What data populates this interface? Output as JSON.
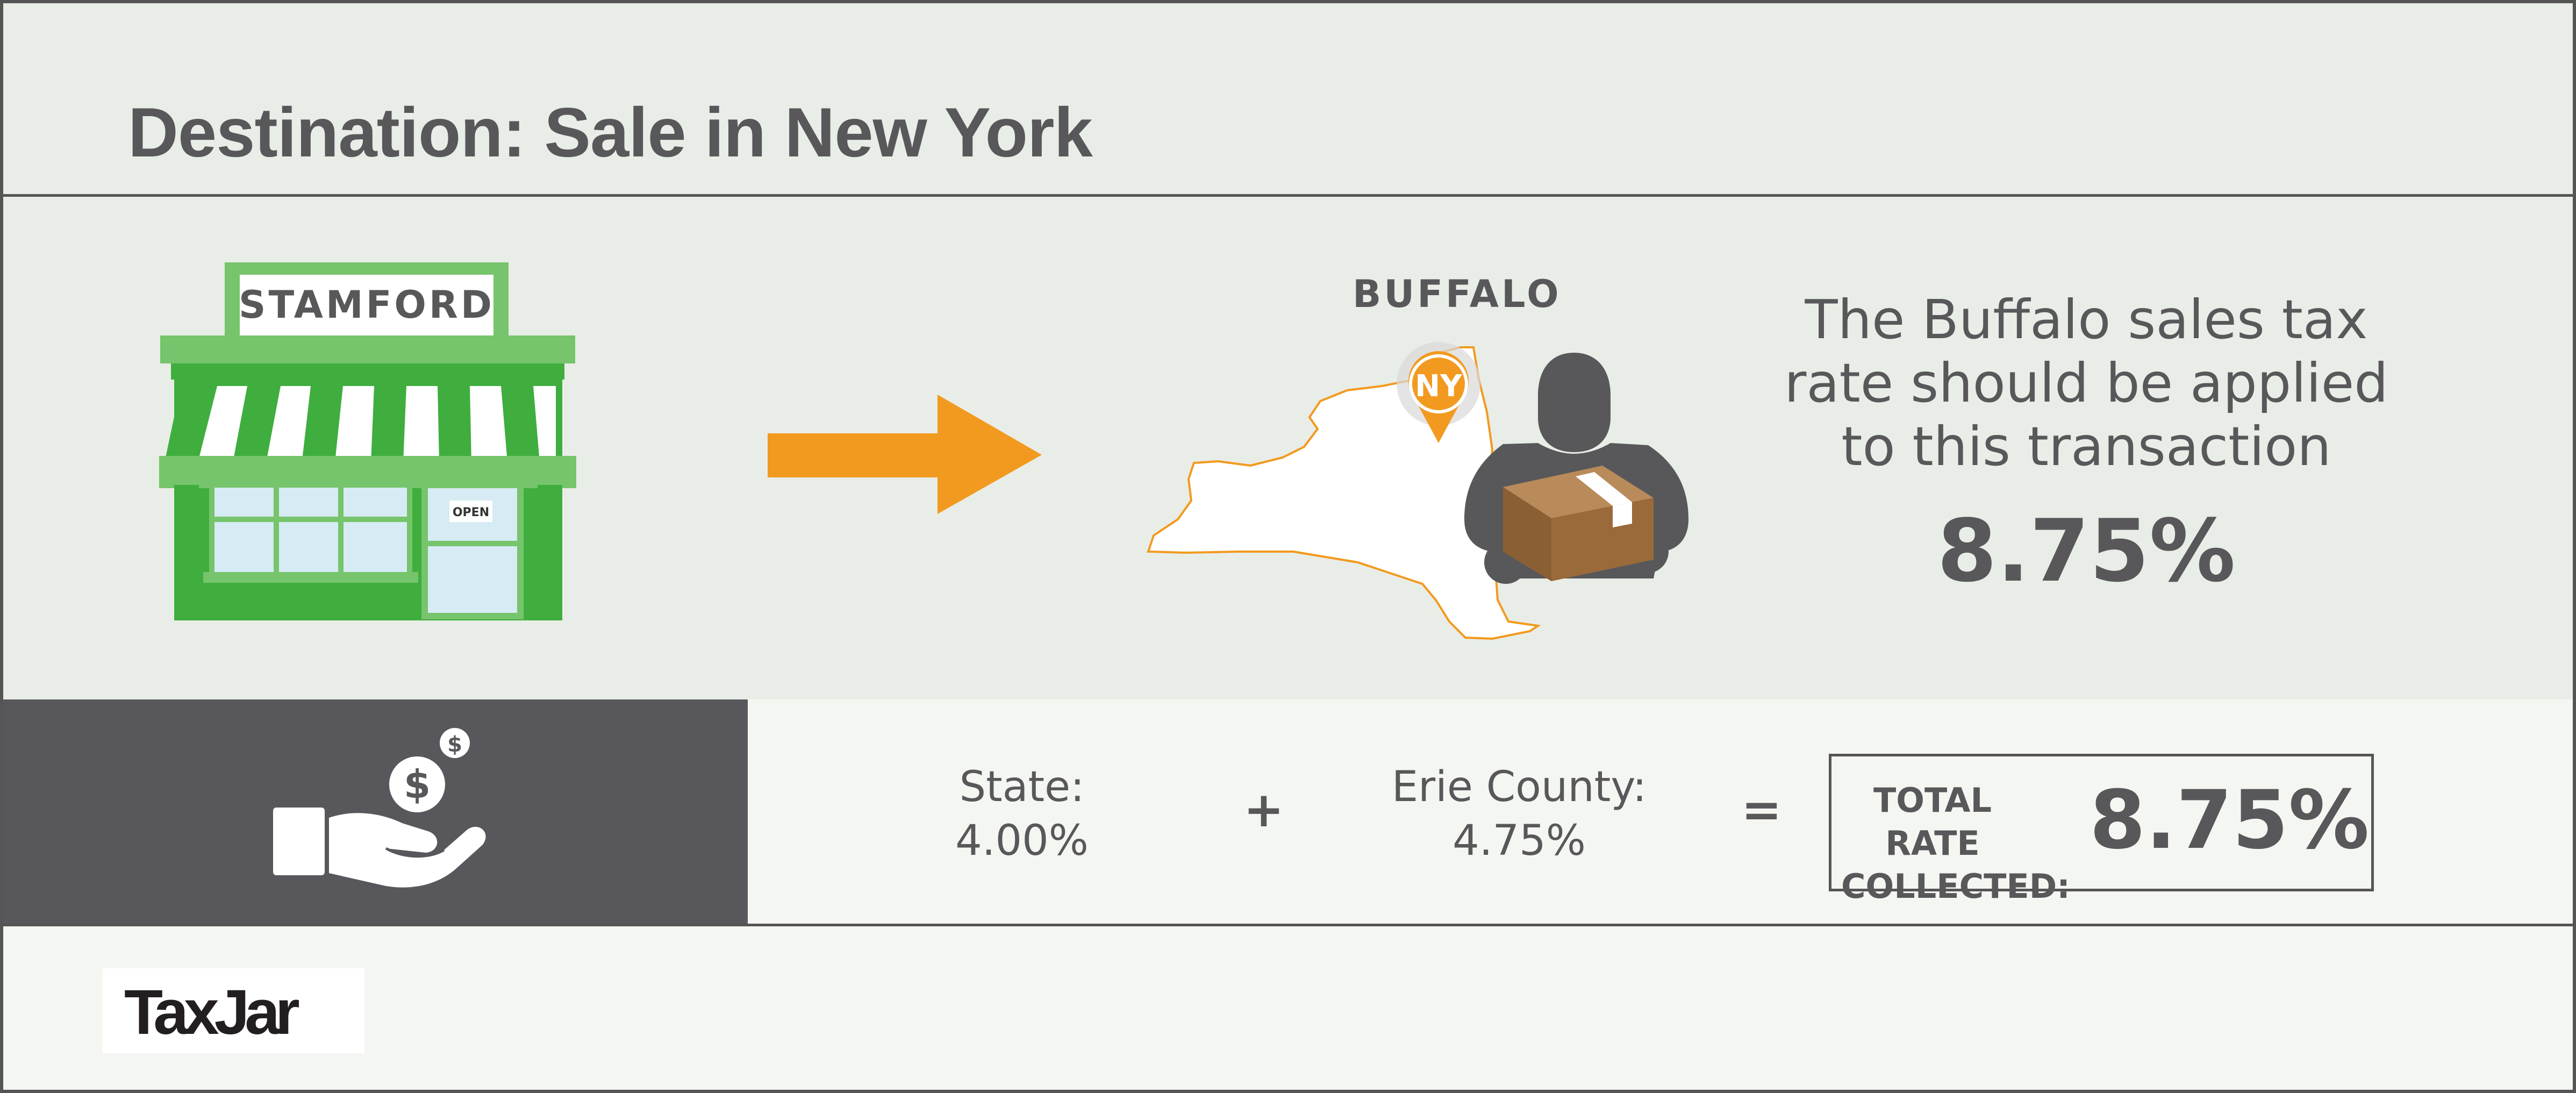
{
  "header": {
    "title": "Destination: Sale in New York"
  },
  "store": {
    "sign_label": "STAMFORD",
    "door_sign": "OPEN"
  },
  "destination": {
    "city_label": "BUFFALO",
    "pin_label": "NY"
  },
  "result": {
    "description": "The Buffalo sales tax rate should be applied to this transaction",
    "rate": "8.75%"
  },
  "breakdown": {
    "state_label": "State:",
    "state_rate": "4.00%",
    "plus": "+",
    "county_label": "Erie County:",
    "county_rate": "4.75%",
    "equals": "=",
    "total_label_line1": "TOTAL RATE",
    "total_label_line2": "COLLECTED:",
    "total_rate": "8.75%"
  },
  "icons": {
    "coin_symbol": "$"
  },
  "footer": {
    "logo_text": "TaxJar"
  },
  "colors": {
    "store_green": "#3fae3e",
    "store_light_green": "#76c46b",
    "arrow_orange": "#f29a1f",
    "text_gray": "#58585a",
    "dark_panel": "#58575b",
    "box_brown": "#9a6a3a"
  }
}
